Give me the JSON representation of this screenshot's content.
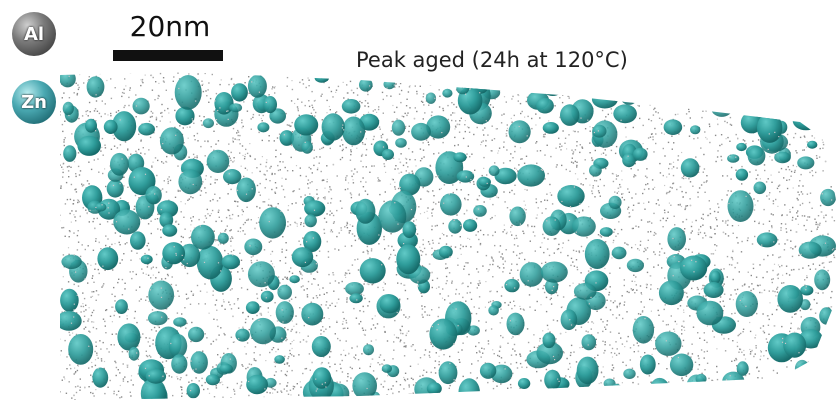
{
  "legend": {
    "al_label": "Al",
    "zn_label": "Zn",
    "al_color": "#7a7a7a",
    "zn_color": "#2e9c9a"
  },
  "scale_bar": {
    "label": "20nm"
  },
  "title": "Peak aged (24h at 120°C)",
  "colors": {
    "background": "#ffffff",
    "al_atoms": "#8a8a8a",
    "zn_precipitates": "#2e9c9a"
  }
}
